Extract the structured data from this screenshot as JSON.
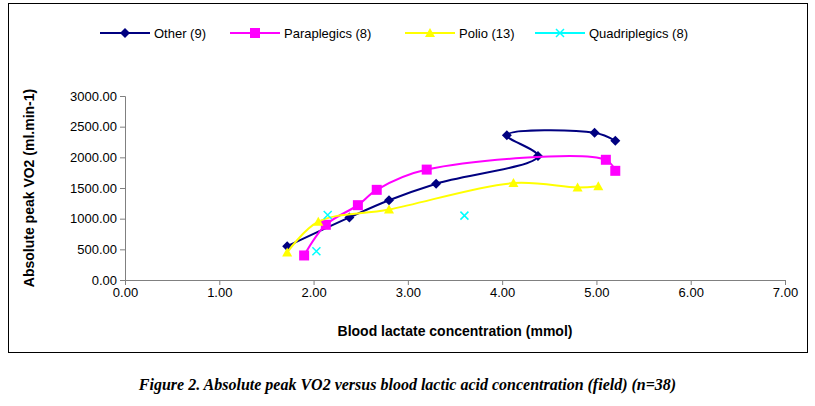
{
  "chart_data": {
    "type": "scatter",
    "title": "Figure 2. Absolute peak VO2 versus blood lactic acid concentration (field) (n=38)",
    "x_label": "Blood lactate concentration (mmol)",
    "y_label": "Absolute peak VO2 (ml.min-1)",
    "legend": "top",
    "grid": false,
    "xlim": [
      0,
      7
    ],
    "xticks": [
      {
        "value": 0,
        "label": "0.00"
      },
      {
        "value": 1,
        "label": "1.00"
      },
      {
        "value": 2,
        "label": "2.00"
      },
      {
        "value": 3,
        "label": "3.00"
      },
      {
        "value": 4,
        "label": "4.00"
      },
      {
        "value": 5,
        "label": "5.00"
      },
      {
        "value": 6,
        "label": "6.00"
      },
      {
        "value": 7,
        "label": "7.00"
      }
    ],
    "ylim": [
      0,
      3000
    ],
    "yticks": [
      {
        "value": 0,
        "label": "0.00"
      },
      {
        "value": 500,
        "label": "500.00"
      },
      {
        "value": 1000,
        "label": "1000.00"
      },
      {
        "value": 1500,
        "label": "1500.00"
      },
      {
        "value": 2000,
        "label": "2000.00"
      },
      {
        "value": 2500,
        "label": "2500.00"
      },
      {
        "value": 3000,
        "label": "3000.00"
      }
    ],
    "series": [
      {
        "name": "Other (9)",
        "color": "#000080",
        "marker": "diamond",
        "line_style": "solid",
        "x": [
          1.72,
          2.38,
          2.8,
          3.3,
          4.38,
          4.05,
          4.98,
          5.2
        ],
        "values": [
          550,
          1020,
          1300,
          1570,
          2020,
          2360,
          2400,
          2270
        ]
      },
      {
        "name": "Paraplegics (8)",
        "color": "#ff00ff",
        "marker": "square",
        "line_style": "solid",
        "x": [
          1.9,
          2.13,
          2.47,
          2.67,
          3.2,
          5.1,
          5.2
        ],
        "values": [
          400,
          900,
          1220,
          1470,
          1800,
          1960,
          1780
        ]
      },
      {
        "name": "Polio (13)",
        "color": "#ffff00",
        "marker": "triangle",
        "line_style": "solid",
        "x": [
          1.72,
          2.05,
          2.8,
          4.12,
          4.8,
          5.02
        ],
        "values": [
          450,
          950,
          1150,
          1580,
          1510,
          1530
        ]
      },
      {
        "name": "Quadriplegics (8)",
        "color": "#00ffff",
        "marker": "x",
        "line_style": "none",
        "x": [
          2.03,
          2.15,
          3.6
        ],
        "values": [
          470,
          1060,
          1050
        ]
      }
    ]
  }
}
